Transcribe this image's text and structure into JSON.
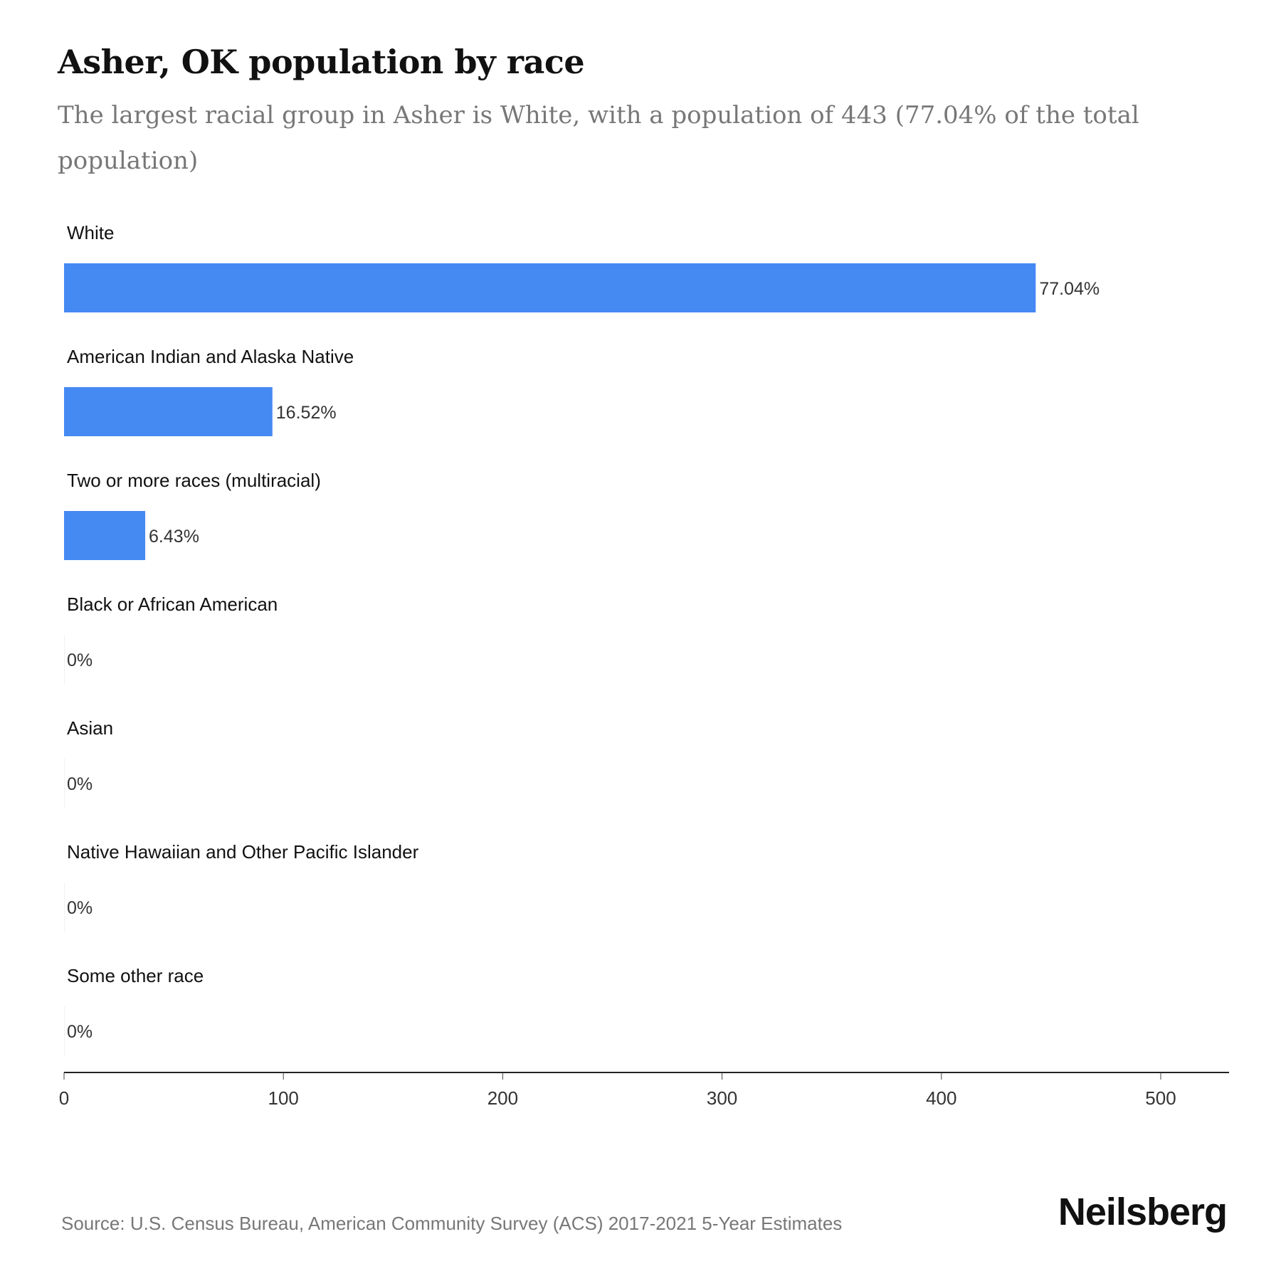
{
  "title": "Asher, OK population by race",
  "subtitle": "The largest racial group in Asher is White, with a population of 443 (77.04% of the total population)",
  "source": "Source: U.S. Census Bureau, American Community Survey (ACS) 2017-2021 5-Year Estimates",
  "logo": "Neilsberg",
  "chart_data": {
    "type": "bar",
    "orientation": "horizontal",
    "categories": [
      "White",
      "American Indian and Alaska Native",
      "Two or more races (multiracial)",
      "Black or African American",
      "Asian",
      "Native Hawaiian and Other Pacific Islander",
      "Some other race"
    ],
    "values": [
      443,
      95,
      37,
      0,
      0,
      0,
      0
    ],
    "labels": [
      "77.04%",
      "16.52%",
      "6.43%",
      "0%",
      "0%",
      "0%",
      "0%"
    ],
    "xlim": [
      0,
      530
    ],
    "xticks": [
      0,
      100,
      200,
      300,
      400,
      500
    ],
    "bar_color": "#4589f3",
    "grid": false
  }
}
